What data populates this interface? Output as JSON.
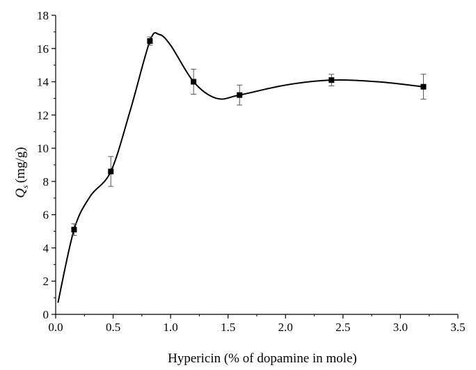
{
  "chart_data": {
    "type": "scatter",
    "title": "",
    "xlabel": "Hypericin (% of dopamine in mole)",
    "ylabel": {
      "symbol": "Q",
      "subscript": "s",
      "unit": "(mg/g)"
    },
    "xlim": [
      0.0,
      3.5
    ],
    "ylim": [
      0,
      18
    ],
    "xticks": [
      "0.0",
      "0.5",
      "1.0",
      "1.5",
      "2.0",
      "2.5",
      "3.0",
      "3.5"
    ],
    "yticks": [
      "0",
      "2",
      "4",
      "6",
      "8",
      "10",
      "12",
      "14",
      "16",
      "18"
    ],
    "grid": false,
    "legend": "none",
    "marker": "square",
    "fit_curve": "smooth spline through points",
    "series": [
      {
        "x": [
          0.16,
          0.48,
          0.82,
          1.2,
          1.6,
          2.4,
          3.2
        ],
        "y": [
          5.1,
          8.6,
          16.45,
          14.0,
          13.2,
          14.1,
          13.7
        ],
        "err": [
          0.35,
          0.9,
          0.25,
          0.75,
          0.6,
          0.35,
          0.75
        ]
      }
    ],
    "curve": {
      "x": [
        0.02,
        0.16,
        0.3,
        0.48,
        0.65,
        0.82,
        0.9,
        1.0,
        1.2,
        1.4,
        1.6,
        2.0,
        2.4,
        2.8,
        3.2
      ],
      "y": [
        0.7,
        5.1,
        7.1,
        8.6,
        12.3,
        16.45,
        16.85,
        16.2,
        14.0,
        13.0,
        13.2,
        13.8,
        14.1,
        14.0,
        13.7
      ]
    },
    "colors": {
      "line": "#000000",
      "marker": "#000000",
      "errorbar": "#555555",
      "axis": "#000000"
    }
  }
}
